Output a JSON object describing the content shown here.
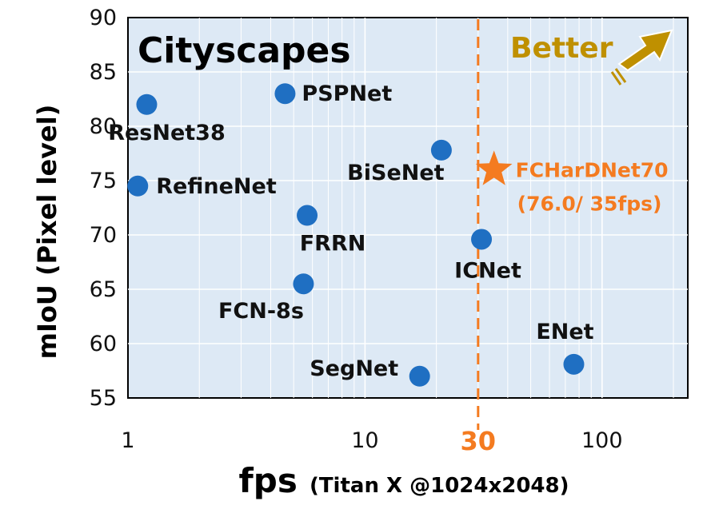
{
  "chart_data": {
    "type": "scatter",
    "title": "Cityscapes",
    "xlabel": "fps",
    "xlabel_sub": "(Titan X @1024x2048)",
    "ylabel": "mIoU (Pixel level)",
    "xscale": "log",
    "xlim": [
      1,
      230
    ],
    "ylim": [
      55,
      90
    ],
    "xticks": [
      {
        "value": 1,
        "label": "1"
      },
      {
        "value": 10,
        "label": "10"
      },
      {
        "value": 100,
        "label": "100"
      }
    ],
    "yticks": [
      55,
      60,
      65,
      70,
      75,
      80,
      85,
      90
    ],
    "threshold": {
      "value": 30,
      "label": "30",
      "color": "#f47b20"
    },
    "grid": true,
    "points": [
      {
        "name": "ResNet38",
        "x": 1.2,
        "y": 82.0
      },
      {
        "name": "PSPNet",
        "x": 4.6,
        "y": 83.0
      },
      {
        "name": "RefineNet",
        "x": 1.1,
        "y": 74.5
      },
      {
        "name": "BiSeNet",
        "x": 21,
        "y": 77.8
      },
      {
        "name": "FRRN",
        "x": 5.7,
        "y": 71.8
      },
      {
        "name": "FCN-8s",
        "x": 5.5,
        "y": 65.5
      },
      {
        "name": "ICNet",
        "x": 31,
        "y": 69.6
      },
      {
        "name": "SegNet",
        "x": 17,
        "y": 57.0
      },
      {
        "name": "ENet",
        "x": 76,
        "y": 58.1
      }
    ],
    "highlight": {
      "name": "FCHarDNet70",
      "x": 35,
      "y": 76.0,
      "note": "(76.0/ 35fps)",
      "color": "#f47b20"
    },
    "annotation": {
      "text": "Better",
      "color": "#bf9000"
    },
    "colors": {
      "point": "#1f6fc2",
      "plot_bg": "#dde9f5",
      "grid": "#ffffff",
      "text_accent": "#f47b20"
    }
  }
}
